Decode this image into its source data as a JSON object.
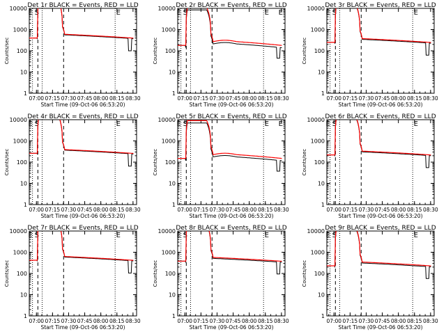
{
  "chart_data": {
    "common": {
      "type": "line",
      "xlabel": "Start Time (09-Oct-06 06:53:20)",
      "ylabel": "Counts/sec",
      "yscale": "log",
      "ylim": [
        1,
        10000
      ],
      "y_ticks": [
        "1",
        "10",
        "100",
        "1000",
        "10000"
      ],
      "xlim_minutes": [
        0,
        100
      ],
      "x_ticks": [
        "07:00",
        "07:15",
        "07:30",
        "07:45",
        "08:00",
        "08:15",
        "08:30"
      ],
      "x_tick_minutes": [
        6.67,
        21.67,
        36.67,
        51.67,
        66.67,
        81.67,
        96.67
      ],
      "colors": {
        "events": "#000000",
        "lld": "#ff0000"
      },
      "markers": {
        "dotted_minutes": [
          3,
          12,
          80
        ],
        "dashed_minutes": [
          8,
          32
        ]
      }
    },
    "panels": [
      {
        "title": "Det 1r BLACK = Events, RED = LLD",
        "labels": [
          "E",
          "S",
          "E"
        ],
        "profile": "a",
        "base": 400,
        "ratio": 0.94
      },
      {
        "title": "Det 2r BLACK = Events, RED = LLD",
        "labels": [
          "E",
          "S",
          "E",
          "E"
        ],
        "profile": "b",
        "base": 180,
        "ratio": 0.78
      },
      {
        "title": "Det 3r BLACK = Events, RED = LLD",
        "labels": [
          "E",
          "S",
          "E"
        ],
        "profile": "c",
        "base": 250,
        "ratio": 0.92
      },
      {
        "title": "Det 4r BLACK = Events, RED = LLD",
        "labels": [
          "E",
          "S",
          "E"
        ],
        "profile": "a",
        "base": 260,
        "ratio": 0.94
      },
      {
        "title": "Det 5r BLACK = Events, RED = LLD",
        "labels": [
          "E",
          "S",
          "E",
          "E"
        ],
        "profile": "b",
        "base": 150,
        "ratio": 0.78
      },
      {
        "title": "Det 6r BLACK = Events, RED = LLD",
        "labels": [
          "E",
          "S",
          "E"
        ],
        "profile": "c",
        "base": 220,
        "ratio": 0.92
      },
      {
        "title": "Det 7r BLACK = Events, RED = LLD",
        "labels": [
          "E",
          "S",
          "E"
        ],
        "profile": "a",
        "base": 420,
        "ratio": 0.94
      },
      {
        "title": "Det 8r BLACK = Events, RED = LLD",
        "labels": [
          "E",
          "S",
          "E"
        ],
        "profile": "a",
        "base": 380,
        "ratio": 0.9
      },
      {
        "title": "Det 9r BLACK = Events, RED = LLD",
        "labels": [
          "E",
          "S",
          "E"
        ],
        "profile": "c",
        "base": 230,
        "ratio": 0.9
      }
    ]
  }
}
